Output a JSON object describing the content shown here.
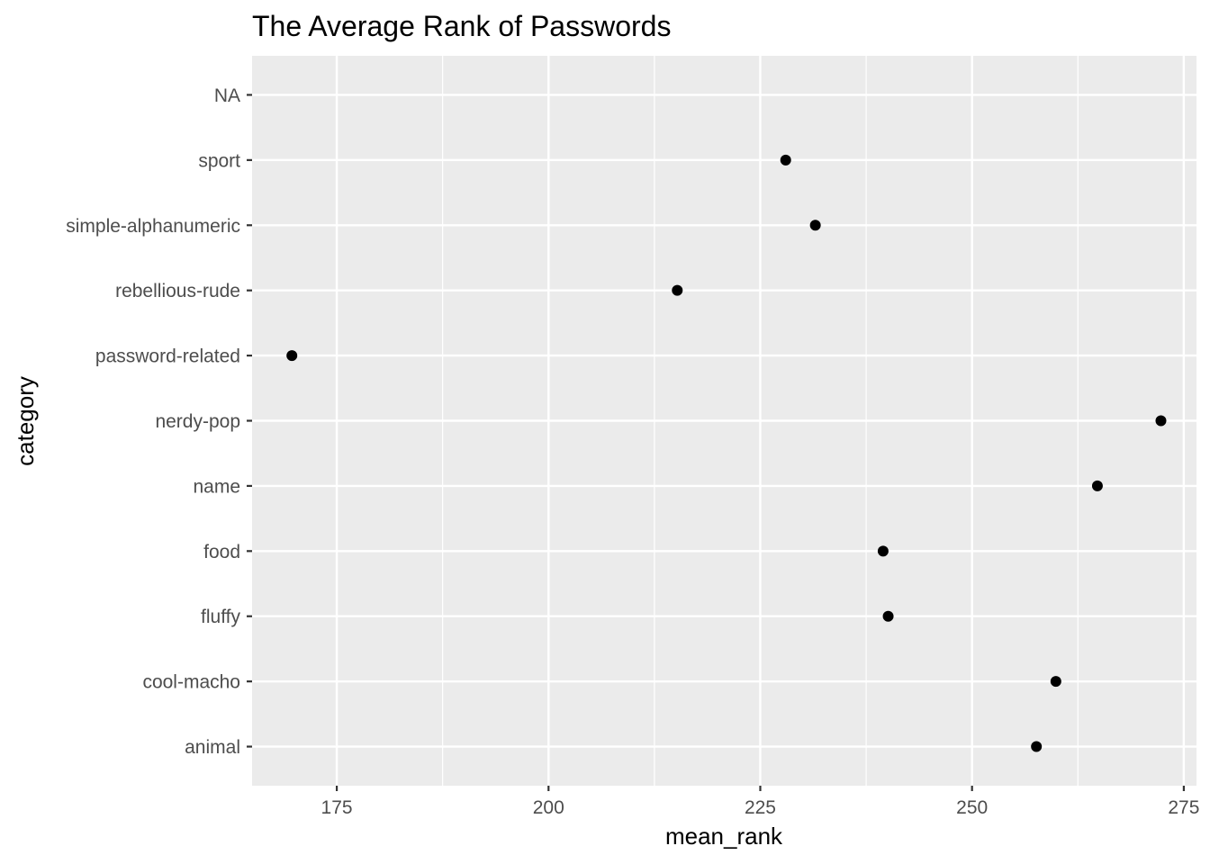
{
  "chart_data": {
    "type": "scatter",
    "title": "The Average Rank of Passwords",
    "xlabel": "mean_rank",
    "ylabel": "category",
    "xlim": [
      165,
      276.5
    ],
    "xticks": [
      175,
      200,
      225,
      250,
      275
    ],
    "grid": true,
    "legend": "none",
    "categories": [
      "animal",
      "cool-macho",
      "fluffy",
      "food",
      "name",
      "nerdy-pop",
      "password-related",
      "rebellious-rude",
      "simple-alphanumeric",
      "sport",
      "NA"
    ],
    "points": [
      {
        "category": "animal",
        "x": 257.6
      },
      {
        "category": "cool-macho",
        "x": 259.9
      },
      {
        "category": "fluffy",
        "x": 240.1
      },
      {
        "category": "food",
        "x": 239.5
      },
      {
        "category": "name",
        "x": 264.8
      },
      {
        "category": "nerdy-pop",
        "x": 272.3
      },
      {
        "category": "password-related",
        "x": 169.7
      },
      {
        "category": "rebellious-rude",
        "x": 215.2
      },
      {
        "category": "simple-alphanumeric",
        "x": 231.5
      },
      {
        "category": "sport",
        "x": 228.0
      },
      {
        "category": "NA",
        "x": null
      }
    ],
    "colors": {
      "panel_background": "#ebebeb",
      "grid_major": "#ffffff",
      "point": "#000000",
      "tick_text": "#4d4d4d"
    }
  }
}
